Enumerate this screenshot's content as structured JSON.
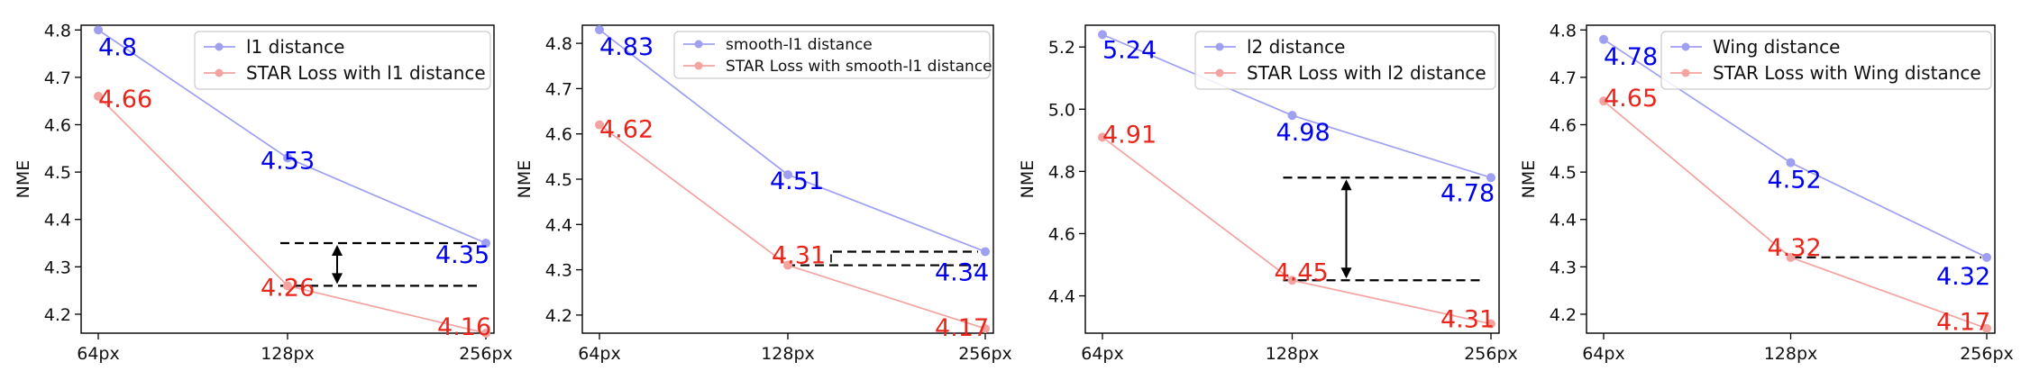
{
  "chart_data": [
    {
      "type": "line",
      "categories": [
        "64px",
        "128px",
        "256px"
      ],
      "ylabel": "NME",
      "ylim": [
        4.16,
        4.81
      ],
      "yticks": [
        "4.2",
        "4.3",
        "4.4",
        "4.5",
        "4.6",
        "4.7",
        "4.8"
      ],
      "legend": "top-right",
      "grid": false,
      "series": [
        {
          "name": "l1 distance",
          "color": "#0000ee",
          "values": [
            4.8,
            4.53,
            4.35
          ],
          "labels": [
            "4.8",
            "4.53",
            "4.35"
          ]
        },
        {
          "name": "STAR Loss with l1 distance",
          "color": "#e8261c",
          "values": [
            4.66,
            4.26,
            4.16
          ],
          "labels": [
            "4.66",
            "4.26",
            "4.16"
          ]
        }
      ],
      "annotation": {
        "type": "double-arrow",
        "from": 4.35,
        "to": 4.26
      }
    },
    {
      "type": "line",
      "categories": [
        "64px",
        "128px",
        "256px"
      ],
      "ylabel": "NME",
      "ylim": [
        4.16,
        4.84
      ],
      "yticks": [
        "4.2",
        "4.3",
        "4.4",
        "4.5",
        "4.6",
        "4.7",
        "4.8"
      ],
      "legend": "top-right",
      "grid": false,
      "series": [
        {
          "name": "smooth-l1 distance",
          "color": "#0000ee",
          "values": [
            4.83,
            4.51,
            4.34
          ],
          "labels": [
            "4.83",
            "4.51",
            "4.34"
          ]
        },
        {
          "name": "STAR Loss with smooth-l1 distance",
          "color": "#e8261c",
          "values": [
            4.62,
            4.31,
            4.17
          ],
          "labels": [
            "4.62",
            "4.31",
            "4.17"
          ]
        }
      ],
      "annotation": {
        "type": "bracket",
        "from": 4.34,
        "to": 4.31
      }
    },
    {
      "type": "line",
      "categories": [
        "64px",
        "128px",
        "256px"
      ],
      "ylabel": "NME",
      "ylim": [
        4.28,
        5.27
      ],
      "yticks": [
        "4.4",
        "4.6",
        "4.8",
        "5.0",
        "5.2"
      ],
      "legend": "top-right",
      "grid": false,
      "series": [
        {
          "name": "l2 distance",
          "color": "#0000ee",
          "values": [
            5.24,
            4.98,
            4.78
          ],
          "labels": [
            "5.24",
            "4.98",
            "4.78"
          ]
        },
        {
          "name": "STAR Loss with l2 distance",
          "color": "#e8261c",
          "values": [
            4.91,
            4.45,
            4.31
          ],
          "labels": [
            "4.91",
            "4.45",
            "4.31"
          ]
        }
      ],
      "annotation": {
        "type": "double-arrow",
        "from": 4.78,
        "to": 4.45
      }
    },
    {
      "type": "line",
      "categories": [
        "64px",
        "128px",
        "256px"
      ],
      "ylabel": "NME",
      "ylim": [
        4.16,
        4.81
      ],
      "yticks": [
        "4.2",
        "4.3",
        "4.4",
        "4.5",
        "4.6",
        "4.7",
        "4.8"
      ],
      "legend": "top-right",
      "grid": false,
      "series": [
        {
          "name": "Wing distance",
          "color": "#0000ee",
          "values": [
            4.78,
            4.52,
            4.32
          ],
          "labels": [
            "4.78",
            "4.52",
            "4.32"
          ]
        },
        {
          "name": "STAR Loss with Wing distance",
          "color": "#e8261c",
          "values": [
            4.65,
            4.32,
            4.17
          ],
          "labels": [
            "4.65",
            "4.32",
            "4.17"
          ]
        }
      ],
      "annotation": {
        "type": "none",
        "from": 4.32,
        "to": 4.32
      }
    }
  ]
}
